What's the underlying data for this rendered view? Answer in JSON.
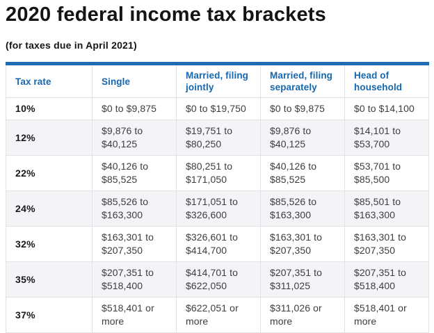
{
  "page": {
    "title": "2020 federal income tax brackets",
    "subtitle": "(for taxes due in April 2021)"
  },
  "colors": {
    "accent": "#1f6cb5",
    "header_text": "#1567b0",
    "title_text": "#141414",
    "cell_text": "#3d3d42",
    "rate_text": "#19191c",
    "row_alt_bg": "#f4f4f6",
    "border": "#e2e2e6"
  },
  "chart_data": {
    "type": "table",
    "title": "2020 federal income tax brackets",
    "subtitle": "(for taxes due in April 2021)",
    "columns": [
      "Tax rate",
      "Single",
      "Married, filing jointly",
      "Married, filing separately",
      "Head of household"
    ],
    "rows": [
      [
        "10%",
        "$0 to $9,875",
        "$0 to $19,750",
        "$0 to $9,875",
        "$0 to $14,100"
      ],
      [
        "12%",
        "$9,876 to $40,125",
        "$19,751 to $80,250",
        "$9,876 to $40,125",
        "$14,101 to $53,700"
      ],
      [
        "22%",
        "$40,126 to $85,525",
        "$80,251 to $171,050",
        "$40,126 to $85,525",
        "$53,701 to $85,500"
      ],
      [
        "24%",
        "$85,526 to $163,300",
        "$171,051 to $326,600",
        "$85,526 to $163,300",
        "$85,501 to $163,300"
      ],
      [
        "32%",
        "$163,301 to $207,350",
        "$326,601 to $414,700",
        "$163,301 to $207,350",
        "$163,301 to $207,350"
      ],
      [
        "35%",
        "$207,351 to $518,400",
        "$414,701 to $622,050",
        "$207,351 to $311,025",
        "$207,351 to $518,400"
      ],
      [
        "37%",
        "$518,401 or more",
        "$622,051 or more",
        "$311,026 or more",
        "$518,401 or more"
      ]
    ],
    "layout": {
      "zebra_striping": "even data rows shaded",
      "accent_top_border": true,
      "header_position": "top row, blue bold text"
    }
  }
}
